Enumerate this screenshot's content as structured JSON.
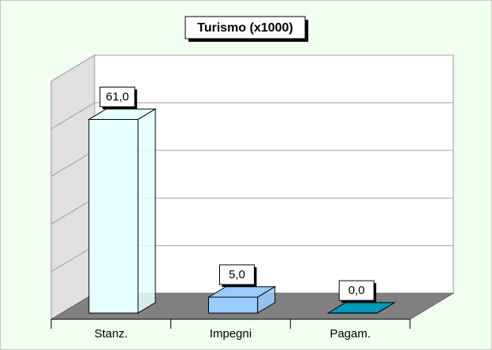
{
  "chart_data": {
    "type": "bar3d",
    "title": "Turismo (x1000)",
    "categories": [
      "Stanz.",
      "Impegni",
      "Pagam."
    ],
    "values": [
      61,
      5,
      0
    ],
    "value_labels": [
      "61,0",
      "5,0",
      "0,0"
    ],
    "colors": [
      "#e6ffff",
      "#99ccff",
      "#0099bb"
    ],
    "ylim": [
      0,
      75
    ],
    "yticks": [
      0,
      15,
      30,
      45,
      60,
      75
    ],
    "grid": true
  }
}
